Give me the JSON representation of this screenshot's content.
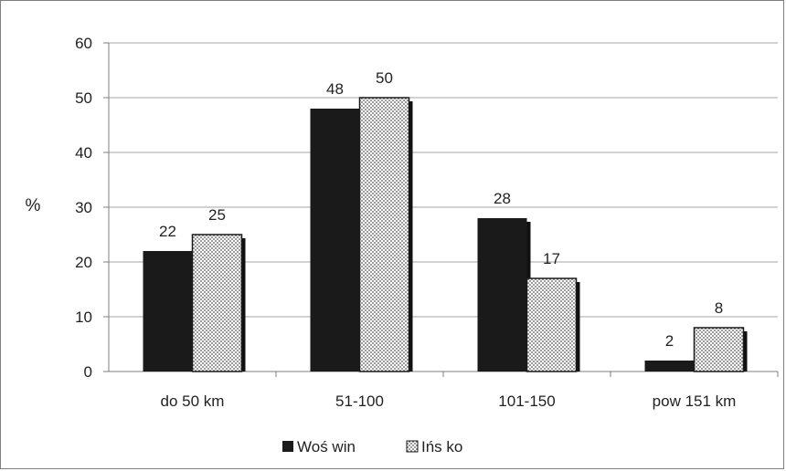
{
  "chart_data": {
    "type": "bar",
    "title": "",
    "xlabel": "",
    "ylabel": "%",
    "ylim": [
      0,
      60
    ],
    "yticks": [
      0,
      10,
      20,
      30,
      40,
      50,
      60
    ],
    "categories": [
      "do 50 km",
      "51-100",
      "101-150",
      "pow 151 km"
    ],
    "series": [
      {
        "name": "Woś win",
        "values": [
          22,
          48,
          28,
          2
        ],
        "fill": "solid",
        "color": "#1a1a1a"
      },
      {
        "name": "Ińs ko",
        "values": [
          25,
          50,
          17,
          8
        ],
        "fill": "dotted",
        "color": "#ffffff"
      }
    ],
    "data_labels": true,
    "grid": true,
    "legend_position": "bottom"
  }
}
